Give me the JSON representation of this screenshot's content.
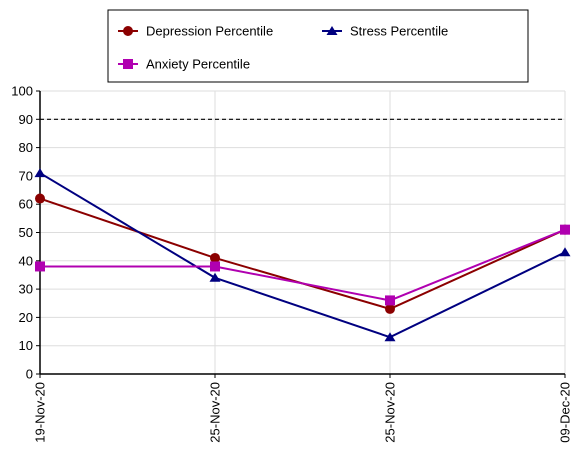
{
  "chart_data": {
    "type": "line",
    "categories": [
      "19-Nov-20",
      "25-Nov-20",
      "25-Nov-20",
      "09-Dec-20"
    ],
    "ylim": [
      0,
      100
    ],
    "yticks": [
      0,
      10,
      20,
      30,
      40,
      50,
      60,
      70,
      80,
      90,
      100
    ],
    "grid": true,
    "reference_line": {
      "y": 90,
      "style": "dashed"
    },
    "legend_position": "top",
    "series": [
      {
        "name": "Depression Percentile",
        "values": [
          62,
          41,
          23,
          51
        ],
        "color": "#8b0000",
        "marker": "circle"
      },
      {
        "name": "Stress Percentile",
        "values": [
          71,
          34,
          13,
          43
        ],
        "color": "#000080",
        "marker": "triangle"
      },
      {
        "name": "Anxiety Percentile",
        "values": [
          38,
          38,
          26,
          51
        ],
        "color": "#b000b0",
        "marker": "square"
      }
    ]
  }
}
